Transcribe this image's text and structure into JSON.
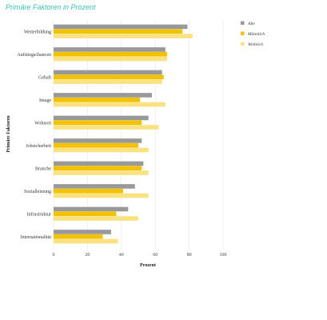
{
  "chart_data": {
    "type": "bar",
    "orientation": "horizontal",
    "title": "Primäre Faktoren in Prozent",
    "xlabel": "Prozent",
    "ylabel": "Primäre Faktoren",
    "xlim": [
      0,
      100
    ],
    "xticks": [
      "0",
      "20",
      "40",
      "60",
      "80",
      "100"
    ],
    "grid": "vertical",
    "legend_position": "top-right",
    "categories": [
      "Weiterbildung",
      "Aufstiegschancen",
      "Gehalt",
      "Image",
      "Wohnort",
      "Jobsicherheit",
      "Branche",
      "Sozialleistung",
      "Infrastruktur",
      "Internationalität"
    ],
    "series": [
      {
        "name": "Alle",
        "color": "#999999",
        "values": [
          79,
          66,
          64,
          58,
          56,
          52,
          53,
          48,
          44,
          34
        ]
      },
      {
        "name": "Männlich",
        "color": "#f2c200",
        "values": [
          76,
          67,
          65,
          51,
          52,
          50,
          52,
          41,
          37,
          29
        ]
      },
      {
        "name": "Weiblich",
        "color": "#f9e27f",
        "values": [
          82,
          67,
          64,
          66,
          62,
          56,
          56,
          56,
          50,
          38
        ]
      }
    ]
  }
}
